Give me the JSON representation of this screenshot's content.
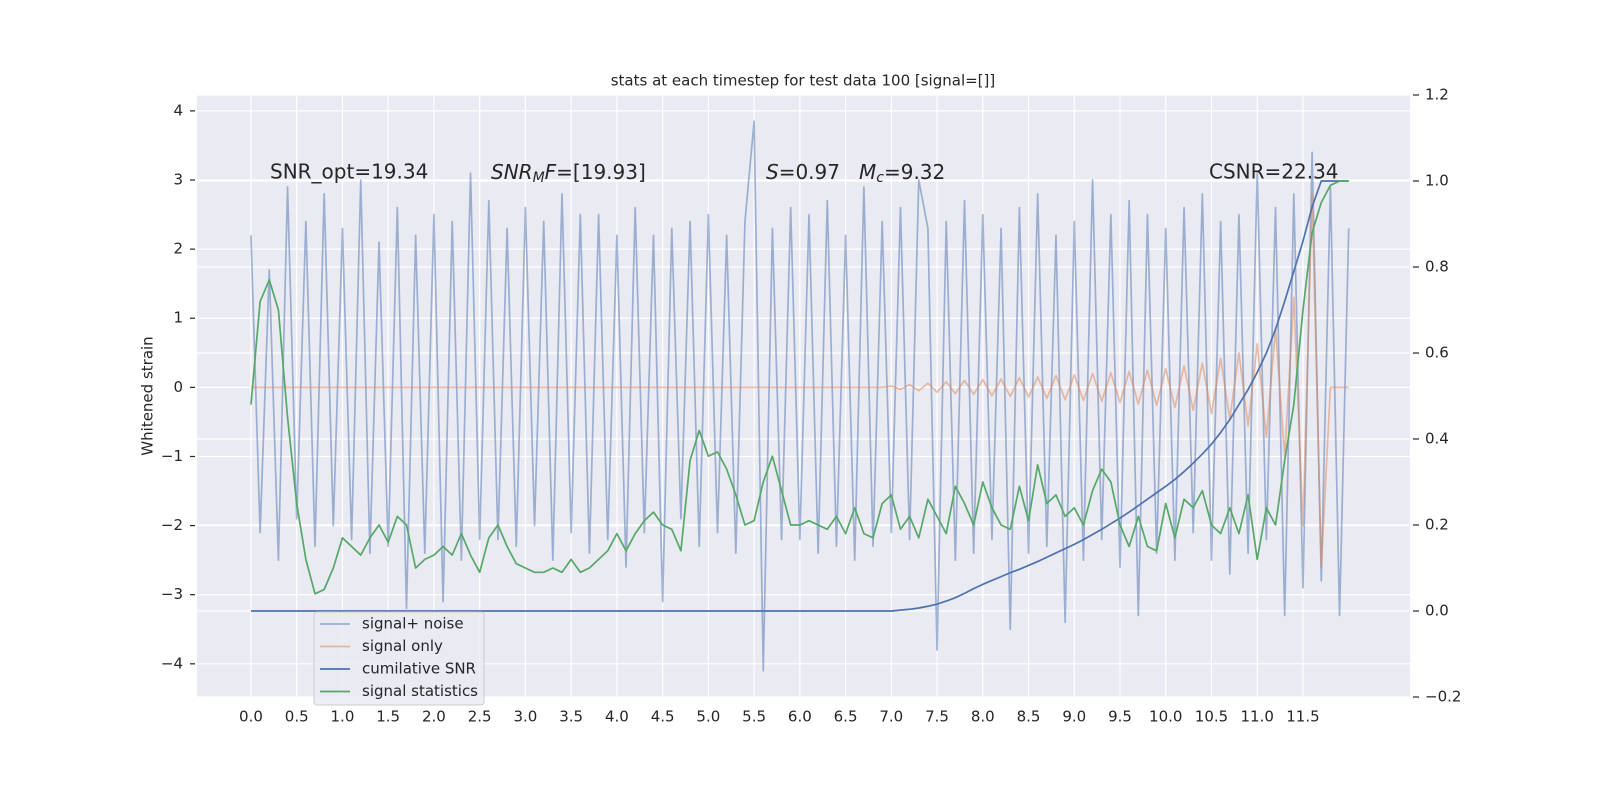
{
  "chart_data": {
    "type": "line",
    "title": "stats at each timestep for test data 100 [signal=[]]",
    "ylabel": "Whitened strain",
    "annotations": [
      {
        "text": "SNR_opt=19.34"
      },
      {
        "base": "SNR",
        "sub": "M",
        "base2": "F",
        "rest": "=[19.93]"
      },
      {
        "base": "S",
        "rest": "=0.97"
      },
      {
        "base": "M",
        "sub": "c",
        "rest": "=9.32"
      },
      {
        "text": "CSNR=22.34"
      }
    ],
    "xlim": [
      -0.59,
      12.67
    ],
    "xticks": [
      {
        "value": 0,
        "label": "0.0"
      },
      0.5,
      {
        "value": 1,
        "label": "1.0"
      },
      1.5,
      {
        "value": 2,
        "label": "2.0"
      },
      2.5,
      {
        "value": 3,
        "label": "3.0"
      },
      3.5,
      {
        "value": 4,
        "label": "4.0"
      },
      4.5,
      {
        "value": 5,
        "label": "5.0"
      },
      5.5,
      {
        "value": 6,
        "label": "6.0"
      },
      6.5,
      {
        "value": 7,
        "label": "7.0"
      },
      7.5,
      {
        "value": 8,
        "label": "8.0"
      },
      8.5,
      {
        "value": 9,
        "label": "9.0"
      },
      9.5,
      {
        "value": 10,
        "label": "10.0"
      },
      10.5,
      {
        "value": 11,
        "label": "11.0"
      },
      11.5
    ],
    "ylim": [
      -4.48,
      4.23
    ],
    "yticks": [
      {
        "value": -4,
        "label": "−4"
      },
      {
        "value": -3,
        "label": "−3"
      },
      {
        "value": -2,
        "label": "−2"
      },
      {
        "value": -1,
        "label": "−1"
      },
      0,
      1,
      2,
      3,
      4
    ],
    "y2lim": [
      -0.2,
      1.2
    ],
    "y2ticks": [
      {
        "value": -0.2,
        "label": "−0.2"
      },
      {
        "value": 0,
        "label": "0.0"
      },
      0.2,
      0.4,
      0.6,
      0.8,
      {
        "value": 1,
        "label": "1.0"
      },
      1.2
    ],
    "grid": true,
    "legend": "lower left",
    "x": [
      0,
      0.1,
      0.2,
      0.3,
      0.4,
      0.5,
      0.6,
      0.7,
      0.8,
      0.9,
      1,
      1.1,
      1.2,
      1.3,
      1.4,
      1.5,
      1.6,
      1.7,
      1.8,
      1.9,
      2,
      2.1,
      2.2,
      2.3,
      2.4,
      2.5,
      2.6,
      2.7,
      2.8,
      2.9,
      3,
      3.1,
      3.2,
      3.3,
      3.4,
      3.5,
      3.6,
      3.7,
      3.8,
      3.9,
      4,
      4.1,
      4.2,
      4.3,
      4.4,
      4.5,
      4.6,
      4.7,
      4.8,
      4.9,
      5,
      5.1,
      5.2,
      5.3,
      5.4,
      5.5,
      5.6,
      5.7,
      5.8,
      5.9,
      6,
      6.1,
      6.2,
      6.3,
      6.4,
      6.5,
      6.6,
      6.7,
      6.8,
      6.9,
      7,
      7.1,
      7.2,
      7.3,
      7.4,
      7.5,
      7.6,
      7.7,
      7.8,
      7.9,
      8,
      8.1,
      8.2,
      8.3,
      8.4,
      8.5,
      8.6,
      8.7,
      8.8,
      8.9,
      9,
      9.1,
      9.2,
      9.3,
      9.4,
      9.5,
      9.6,
      9.7,
      9.8,
      9.9,
      10,
      10.1,
      10.2,
      10.3,
      10.4,
      10.5,
      10.6,
      10.7,
      10.8,
      10.9,
      11,
      11.1,
      11.2,
      11.3,
      11.4,
      11.5,
      11.6,
      11.7,
      11.8,
      11.9,
      12
    ],
    "series": [
      {
        "name": "signal+ noise",
        "color": "#4c72b0",
        "alpha": 0.5,
        "axis": "y",
        "values": [
          2.2,
          -2.1,
          1.7,
          -2.5,
          2.9,
          -1.9,
          2.4,
          -2.3,
          2.8,
          -2.0,
          2.3,
          -2.2,
          3.0,
          -2.4,
          2.1,
          -2.3,
          2.6,
          -3.2,
          2.2,
          -2.4,
          2.5,
          -3.1,
          2.4,
          -2.5,
          3.1,
          -2.2,
          2.7,
          -2.2,
          2.3,
          -2.3,
          2.6,
          -2.0,
          2.4,
          -2.5,
          2.8,
          -2.1,
          2.5,
          -2.4,
          2.5,
          -2.2,
          2.2,
          -2.6,
          2.6,
          -2.1,
          2.2,
          -3.1,
          2.3,
          -1.9,
          2.4,
          -2.3,
          2.5,
          -2.1,
          2.2,
          -2.4,
          2.4,
          3.85,
          -4.1,
          2.3,
          -2.2,
          2.6,
          -2.2,
          2.5,
          -2.4,
          2.7,
          -2.3,
          2.2,
          -2.5,
          2.9,
          -2.3,
          2.4,
          -2.1,
          2.6,
          -2.2,
          3.0,
          2.3,
          -3.8,
          2.4,
          -2.5,
          2.7,
          -2.4,
          2.5,
          -2.2,
          2.3,
          -3.5,
          2.6,
          -2.4,
          2.8,
          -2.3,
          2.2,
          -3.4,
          2.4,
          -2.5,
          3.0,
          -2.2,
          2.5,
          -2.6,
          2.7,
          -3.3,
          2.5,
          -2.4,
          2.3,
          -2.5,
          2.6,
          -2.1,
          2.8,
          -2.5,
          2.4,
          -2.7,
          2.5,
          -2.4,
          3.1,
          -2.2,
          2.6,
          -3.3,
          2.8,
          -2.9,
          3.4,
          -2.8,
          2.9,
          -3.3,
          2.3
        ]
      },
      {
        "name": "signal only",
        "color": "#dd8452",
        "alpha": 0.5,
        "axis": "y",
        "values": [
          0,
          0,
          0,
          0,
          0,
          0,
          0,
          0,
          0,
          0,
          0,
          0,
          0,
          0,
          0,
          0,
          0,
          0,
          0,
          0,
          0,
          0,
          0,
          0,
          0,
          0,
          0,
          0,
          0,
          0,
          0,
          0,
          0,
          0,
          0,
          0,
          0,
          0,
          0,
          0,
          0,
          0,
          0,
          0,
          0,
          0,
          0,
          0,
          0,
          0,
          0,
          0,
          0,
          0,
          0,
          0,
          0,
          0,
          0,
          0,
          0,
          0,
          0,
          0,
          0,
          0,
          0,
          0,
          0,
          0,
          0.02,
          -0.03,
          0.04,
          -0.05,
          0.06,
          -0.07,
          0.08,
          -0.09,
          0.1,
          -0.1,
          0.11,
          -0.12,
          0.12,
          -0.13,
          0.14,
          -0.14,
          0.15,
          -0.16,
          0.17,
          -0.18,
          0.18,
          -0.19,
          0.2,
          -0.2,
          0.21,
          -0.22,
          0.23,
          -0.24,
          0.25,
          -0.26,
          0.27,
          -0.29,
          0.31,
          -0.33,
          0.35,
          -0.38,
          0.42,
          -0.46,
          0.5,
          -0.56,
          0.63,
          -0.72,
          0.85,
          -1.0,
          1.3,
          -2.0,
          2.8,
          -2.6,
          0,
          0,
          0
        ]
      },
      {
        "name": "cumilative SNR",
        "color": "#4c72b0",
        "alpha": 1,
        "axis": "y2",
        "values": [
          0,
          0,
          0,
          0,
          0,
          0,
          0,
          0,
          0,
          0,
          0,
          0,
          0,
          0,
          0,
          0,
          0,
          0,
          0,
          0,
          0,
          0,
          0,
          0,
          0,
          0,
          0,
          0,
          0,
          0,
          0,
          0,
          0,
          0,
          0,
          0,
          0,
          0,
          0,
          0,
          0,
          0,
          0,
          0,
          0,
          0,
          0,
          0,
          0,
          0,
          0,
          0,
          0,
          0,
          0,
          0,
          0,
          0,
          0,
          0,
          0,
          0,
          0,
          0,
          0,
          0,
          0,
          0,
          0,
          0,
          0,
          0.002,
          0.004,
          0.007,
          0.011,
          0.016,
          0.023,
          0.031,
          0.041,
          0.052,
          0.062,
          0.071,
          0.08,
          0.089,
          0.097,
          0.106,
          0.115,
          0.125,
          0.135,
          0.145,
          0.155,
          0.166,
          0.178,
          0.19,
          0.203,
          0.216,
          0.23,
          0.245,
          0.26,
          0.275,
          0.29,
          0.306,
          0.324,
          0.344,
          0.365,
          0.388,
          0.415,
          0.445,
          0.48,
          0.515,
          0.555,
          0.6,
          0.655,
          0.72,
          0.79,
          0.86,
          0.94,
          1,
          1,
          1,
          1
        ]
      },
      {
        "name": "signal statistics",
        "color": "#55a868",
        "alpha": 1,
        "axis": "y2",
        "values": [
          0.48,
          0.72,
          0.77,
          0.7,
          0.45,
          0.25,
          0.12,
          0.04,
          0.05,
          0.1,
          0.17,
          0.15,
          0.13,
          0.17,
          0.2,
          0.16,
          0.22,
          0.2,
          0.1,
          0.12,
          0.13,
          0.15,
          0.13,
          0.18,
          0.13,
          0.09,
          0.17,
          0.2,
          0.15,
          0.11,
          0.1,
          0.09,
          0.09,
          0.1,
          0.09,
          0.12,
          0.09,
          0.1,
          0.12,
          0.14,
          0.18,
          0.14,
          0.18,
          0.21,
          0.23,
          0.2,
          0.19,
          0.14,
          0.35,
          0.42,
          0.36,
          0.37,
          0.33,
          0.27,
          0.2,
          0.21,
          0.3,
          0.36,
          0.28,
          0.2,
          0.2,
          0.21,
          0.2,
          0.19,
          0.22,
          0.18,
          0.24,
          0.18,
          0.17,
          0.25,
          0.27,
          0.19,
          0.22,
          0.17,
          0.26,
          0.22,
          0.18,
          0.29,
          0.25,
          0.2,
          0.3,
          0.24,
          0.2,
          0.19,
          0.29,
          0.21,
          0.34,
          0.25,
          0.27,
          0.22,
          0.24,
          0.2,
          0.28,
          0.33,
          0.3,
          0.2,
          0.15,
          0.22,
          0.15,
          0.14,
          0.25,
          0.17,
          0.26,
          0.24,
          0.28,
          0.2,
          0.18,
          0.24,
          0.18,
          0.27,
          0.12,
          0.24,
          0.2,
          0.35,
          0.48,
          0.7,
          0.88,
          0.95,
          0.99,
          1.0,
          1.0
        ]
      }
    ]
  }
}
